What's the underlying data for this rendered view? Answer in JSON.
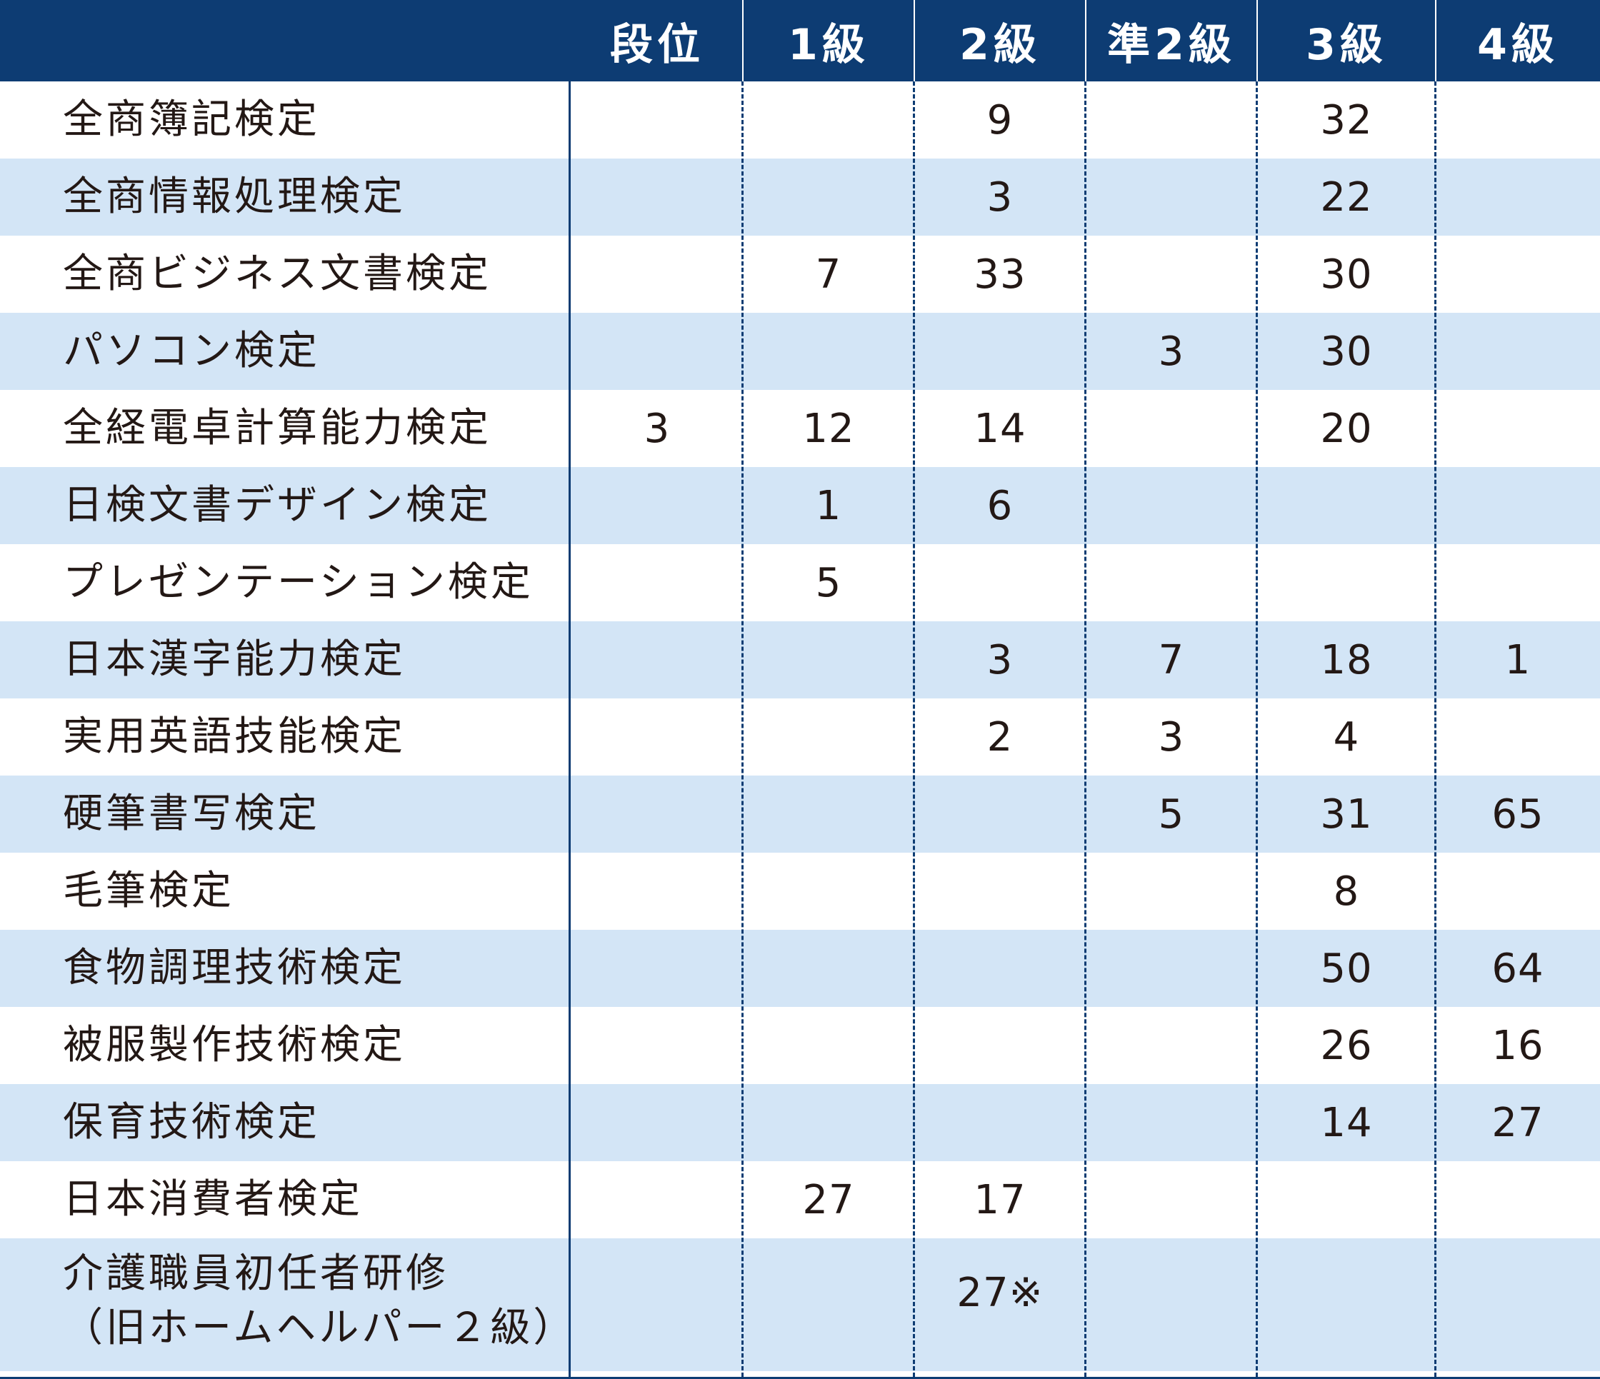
{
  "header": {
    "columns": [
      "段位",
      "1級",
      "2級",
      "準2級",
      "3級",
      "4級"
    ]
  },
  "rows": [
    {
      "label": "全商簿記検定",
      "values": [
        "",
        "",
        "9",
        "",
        "32",
        ""
      ]
    },
    {
      "label": "全商情報処理検定",
      "values": [
        "",
        "",
        "3",
        "",
        "22",
        ""
      ]
    },
    {
      "label": "全商ビジネス文書検定",
      "values": [
        "",
        "7",
        "33",
        "",
        "30",
        ""
      ]
    },
    {
      "label": "パソコン検定",
      "values": [
        "",
        "",
        "",
        "3",
        "30",
        ""
      ]
    },
    {
      "label": "全経電卓計算能力検定",
      "values": [
        "3",
        "12",
        "14",
        "",
        "20",
        ""
      ]
    },
    {
      "label": "日検文書デザイン検定",
      "values": [
        "",
        "1",
        "6",
        "",
        "",
        ""
      ]
    },
    {
      "label": "プレゼンテーション検定",
      "values": [
        "",
        "5",
        "",
        "",
        "",
        ""
      ]
    },
    {
      "label": "日本漢字能力検定",
      "values": [
        "",
        "",
        "3",
        "7",
        "18",
        "1"
      ]
    },
    {
      "label": "実用英語技能検定",
      "values": [
        "",
        "",
        "2",
        "3",
        "4",
        ""
      ]
    },
    {
      "label": "硬筆書写検定",
      "values": [
        "",
        "",
        "",
        "5",
        "31",
        "65"
      ]
    },
    {
      "label": "毛筆検定",
      "values": [
        "",
        "",
        "",
        "",
        "8",
        ""
      ]
    },
    {
      "label": "食物調理技術検定",
      "values": [
        "",
        "",
        "",
        "",
        "50",
        "64"
      ]
    },
    {
      "label": "被服製作技術検定",
      "values": [
        "",
        "",
        "",
        "",
        "26",
        "16"
      ]
    },
    {
      "label": "保育技術検定",
      "values": [
        "",
        "",
        "",
        "",
        "14",
        "27"
      ]
    },
    {
      "label": "日本消費者検定",
      "values": [
        "",
        "27",
        "17",
        "",
        "",
        ""
      ]
    }
  ],
  "last_row": {
    "label_line1": "介護職員初任者研修",
    "label_line2": "（旧ホームヘルパー２級）",
    "values": [
      "",
      "",
      "27※",
      "",
      "",
      ""
    ]
  },
  "colors": {
    "header_bg": "#0d3c73",
    "stripe_bg": "#d3e5f6",
    "text": "#231815"
  }
}
